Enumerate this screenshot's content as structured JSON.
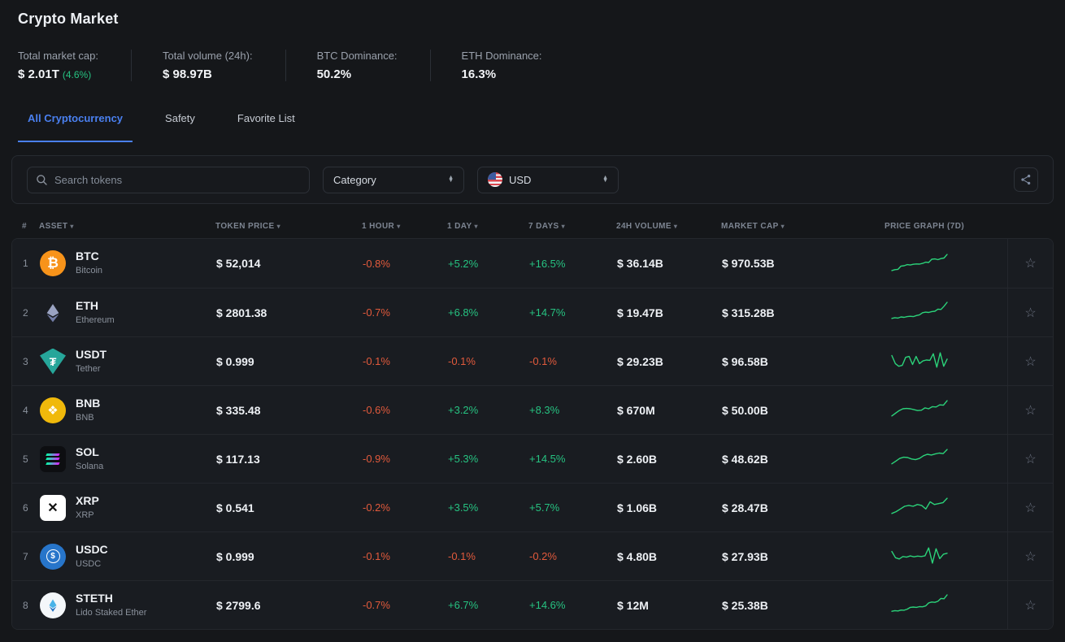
{
  "page": {
    "title": "Crypto Market"
  },
  "stats": [
    {
      "label": "Total market cap:",
      "value": "$ 2.01T",
      "extra": "(4.6%)"
    },
    {
      "label": "Total volume (24h):",
      "value": "$ 98.97B",
      "extra": ""
    },
    {
      "label": "BTC Dominance:",
      "value": "50.2%",
      "extra": ""
    },
    {
      "label": "ETH Dominance:",
      "value": "16.3%",
      "extra": ""
    }
  ],
  "tabs": [
    {
      "label": "All Cryptocurrency",
      "active": true
    },
    {
      "label": "Safety",
      "active": false
    },
    {
      "label": "Favorite List",
      "active": false
    }
  ],
  "filters": {
    "search_placeholder": "Search tokens",
    "category_label": "Category",
    "currency_label": "USD",
    "share_icon": "share-icon",
    "search_icon": "search-icon",
    "flag_icon": "us-flag-icon"
  },
  "table": {
    "columns": {
      "rank": "#",
      "asset": "ASSET",
      "price": "TOKEN PRICE",
      "h1": "1 HOUR",
      "d1": "1 DAY",
      "d7": "7 DAYS",
      "volume": "24H VOLUME",
      "mcap": "MARKET CAP",
      "graph": "PRICE GRAPH (7D)"
    },
    "sort_arrow": "▾",
    "star_glyph": "☆",
    "rows": [
      {
        "rank": "1",
        "symbol": "BTC",
        "name": "Bitcoin",
        "icon": "bitcoin-icon",
        "glyph": "₿",
        "price": "$ 52,014",
        "h1": "-0.8%",
        "d1": "+5.2%",
        "d7": "+16.5%",
        "volume": "$ 36.14B",
        "mcap": "$ 970.53B",
        "spark": [
          0.05,
          0.1,
          0.12,
          0.3,
          0.32,
          0.38,
          0.36,
          0.4,
          0.42,
          0.41,
          0.45,
          0.52,
          0.5,
          0.68,
          0.7,
          0.66,
          0.72,
          0.75,
          0.95
        ]
      },
      {
        "rank": "2",
        "symbol": "ETH",
        "name": "Ethereum",
        "icon": "ethereum-icon",
        "glyph": "",
        "price": "$ 2801.38",
        "h1": "-0.7%",
        "d1": "+6.8%",
        "d7": "+14.7%",
        "volume": "$ 19.47B",
        "mcap": "$ 315.28B",
        "spark": [
          0.1,
          0.14,
          0.12,
          0.18,
          0.16,
          0.2,
          0.22,
          0.2,
          0.26,
          0.3,
          0.42,
          0.45,
          0.43,
          0.48,
          0.5,
          0.62,
          0.6,
          0.78,
          1.0
        ]
      },
      {
        "rank": "3",
        "symbol": "USDT",
        "name": "Tether",
        "icon": "tether-icon",
        "glyph": "₮",
        "price": "$ 0.999",
        "h1": "-0.1%",
        "d1": "-0.1%",
        "d7": "-0.1%",
        "volume": "$ 29.23B",
        "mcap": "$ 96.58B",
        "spark": [
          0.75,
          0.3,
          0.15,
          0.2,
          0.65,
          0.7,
          0.25,
          0.7,
          0.3,
          0.45,
          0.5,
          0.48,
          0.85,
          0.1,
          0.9,
          0.15,
          0.55
        ]
      },
      {
        "rank": "4",
        "symbol": "BNB",
        "name": "BNB",
        "icon": "bnb-icon",
        "glyph": "❖",
        "price": "$ 335.48",
        "h1": "-0.6%",
        "d1": "+3.2%",
        "d7": "+8.3%",
        "volume": "$ 670M",
        "mcap": "$ 50.00B",
        "spark": [
          0.1,
          0.25,
          0.4,
          0.5,
          0.52,
          0.5,
          0.45,
          0.4,
          0.42,
          0.55,
          0.5,
          0.62,
          0.6,
          0.72,
          0.7,
          0.95
        ]
      },
      {
        "rank": "5",
        "symbol": "SOL",
        "name": "Solana",
        "icon": "solana-icon",
        "glyph": "",
        "price": "$ 117.13",
        "h1": "-0.9%",
        "d1": "+5.3%",
        "d7": "+14.5%",
        "volume": "$ 2.60B",
        "mcap": "$ 48.62B",
        "spark": [
          0.15,
          0.3,
          0.45,
          0.52,
          0.5,
          0.42,
          0.38,
          0.45,
          0.6,
          0.68,
          0.64,
          0.7,
          0.75,
          0.72,
          0.95
        ]
      },
      {
        "rank": "6",
        "symbol": "XRP",
        "name": "XRP",
        "icon": "xrp-icon",
        "glyph": "✕",
        "price": "$ 0.541",
        "h1": "-0.2%",
        "d1": "+3.5%",
        "d7": "+5.7%",
        "volume": "$ 1.06B",
        "mcap": "$ 28.47B",
        "spark": [
          0.1,
          0.2,
          0.35,
          0.5,
          0.55,
          0.5,
          0.6,
          0.55,
          0.35,
          0.75,
          0.6,
          0.65,
          0.7,
          0.95
        ]
      },
      {
        "rank": "7",
        "symbol": "USDC",
        "name": "USDC",
        "icon": "usdc-icon",
        "glyph": "$",
        "price": "$ 0.999",
        "h1": "-0.1%",
        "d1": "-0.1%",
        "d7": "-0.2%",
        "volume": "$ 4.80B",
        "mcap": "$ 27.93B",
        "spark": [
          0.7,
          0.35,
          0.28,
          0.42,
          0.38,
          0.45,
          0.4,
          0.44,
          0.42,
          0.46,
          0.9,
          0.05,
          0.85,
          0.3,
          0.55,
          0.6
        ]
      },
      {
        "rank": "8",
        "symbol": "STETH",
        "name": "Lido Staked Ether",
        "icon": "lido-steth-icon",
        "glyph": "",
        "price": "$ 2799.6",
        "h1": "-0.7%",
        "d1": "+6.7%",
        "d7": "+14.6%",
        "volume": "$ 12M",
        "mcap": "$ 25.38B",
        "spark": [
          0.08,
          0.12,
          0.1,
          0.15,
          0.14,
          0.2,
          0.3,
          0.32,
          0.3,
          0.34,
          0.33,
          0.38,
          0.55,
          0.6,
          0.58,
          0.64,
          0.8,
          0.78,
          1.0
        ]
      }
    ]
  },
  "colors": {
    "accent": "#4a80f0",
    "positive": "#26c281",
    "negative": "#e25a3c",
    "sparkline": "#2bd37a",
    "background": "#15171a"
  }
}
